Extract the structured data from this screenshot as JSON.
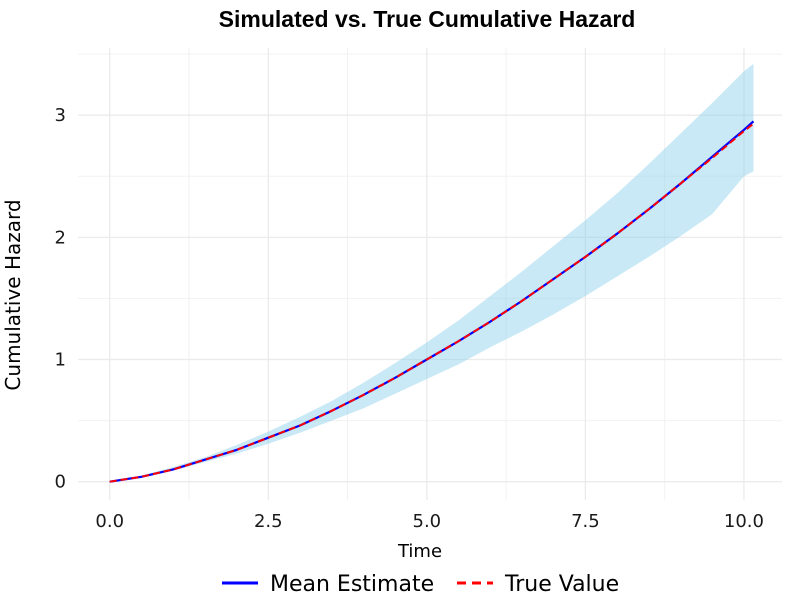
{
  "chart_data": {
    "type": "line",
    "title": "Simulated vs. True Cumulative Hazard",
    "xlabel": "Time",
    "ylabel": "Cumulative Hazard",
    "xlim": [
      -0.5,
      10.6
    ],
    "ylim": [
      -0.15,
      3.55
    ],
    "x_ticks": [
      0.0,
      2.5,
      5.0,
      7.5,
      10.0
    ],
    "x_tick_labels": [
      "0.0",
      "2.5",
      "5.0",
      "7.5",
      "10.0"
    ],
    "y_ticks": [
      0,
      1,
      2,
      3
    ],
    "y_tick_labels": [
      "0",
      "1",
      "2",
      "3"
    ],
    "grid": true,
    "legend_position": "bottom",
    "x": [
      0.0,
      0.5,
      1.0,
      1.5,
      2.0,
      2.5,
      3.0,
      3.5,
      4.0,
      4.5,
      5.0,
      5.5,
      6.0,
      6.5,
      7.0,
      7.5,
      8.0,
      8.5,
      9.0,
      9.5,
      10.0,
      10.15
    ],
    "series": [
      {
        "name": "Mean Estimate",
        "color": "#0000ff",
        "style": "solid",
        "values": [
          0.0,
          0.04,
          0.1,
          0.18,
          0.26,
          0.36,
          0.46,
          0.58,
          0.71,
          0.85,
          1.0,
          1.15,
          1.31,
          1.48,
          1.66,
          1.84,
          2.03,
          2.23,
          2.44,
          2.66,
          2.88,
          2.95
        ]
      },
      {
        "name": "True Value",
        "color": "#ff0000",
        "style": "dashed",
        "values": [
          0.0,
          0.04,
          0.1,
          0.18,
          0.26,
          0.36,
          0.46,
          0.58,
          0.71,
          0.85,
          1.0,
          1.15,
          1.31,
          1.48,
          1.66,
          1.84,
          2.03,
          2.23,
          2.44,
          2.65,
          2.87,
          2.93
        ]
      }
    ],
    "ribbon": {
      "name": "confidence band",
      "color": "#87ceeb",
      "opacity": 0.45,
      "lower": [
        0.0,
        0.03,
        0.09,
        0.16,
        0.23,
        0.31,
        0.4,
        0.5,
        0.6,
        0.72,
        0.84,
        0.96,
        1.1,
        1.23,
        1.37,
        1.52,
        1.68,
        1.84,
        2.01,
        2.19,
        2.5,
        2.54
      ],
      "upper": [
        0.0,
        0.05,
        0.12,
        0.2,
        0.3,
        0.41,
        0.53,
        0.66,
        0.81,
        0.97,
        1.14,
        1.32,
        1.52,
        1.72,
        1.93,
        2.14,
        2.36,
        2.6,
        2.85,
        3.1,
        3.36,
        3.42
      ]
    }
  }
}
